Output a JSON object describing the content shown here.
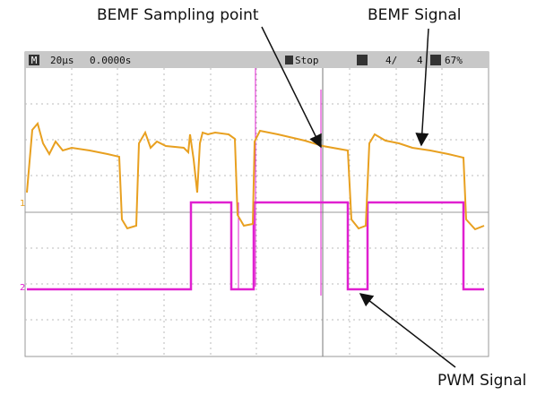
{
  "annotations": {
    "sampling": "BEMF Sampling point",
    "signal": "BEMF Signal",
    "pwm": "PWM Signal"
  },
  "header": {
    "mode": "M",
    "timebase": "20µs",
    "delay": "0.0000s",
    "run": "Stop",
    "acq": "4/",
    "count": "4",
    "level": "67%"
  },
  "channels": {
    "ch1": "1",
    "ch2": "2"
  }
}
